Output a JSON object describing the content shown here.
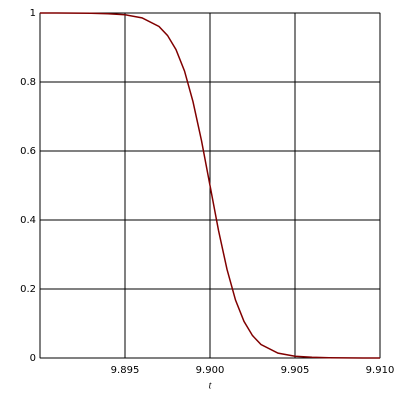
{
  "chart_data": {
    "type": "line",
    "xlabel": "t",
    "x": [
      9.89,
      9.891,
      9.892,
      9.893,
      9.894,
      9.895,
      9.896,
      9.897,
      9.8975,
      9.898,
      9.8985,
      9.899,
      9.8995,
      9.9,
      9.9005,
      9.901,
      9.9015,
      9.902,
      9.9025,
      9.903,
      9.904,
      9.905,
      9.906,
      9.907,
      9.908,
      9.909,
      9.91
    ],
    "series": [
      {
        "color": "#800000",
        "values": [
          1.0,
          0.9999,
          0.9998,
          0.9994,
          0.998,
          0.995,
          0.986,
          0.961,
          0.935,
          0.894,
          0.832,
          0.743,
          0.63,
          0.5,
          0.37,
          0.257,
          0.168,
          0.106,
          0.065,
          0.039,
          0.014,
          0.005,
          0.002,
          0.0006,
          0.0002,
          0.0001,
          0.0
        ]
      }
    ],
    "xlim": [
      9.89,
      9.91
    ],
    "xticks": [
      9.895,
      {
        "value": 9.9,
        "label": "9.900"
      },
      9.905,
      {
        "value": 9.91,
        "label": "9.910"
      }
    ],
    "ylim": [
      0,
      1
    ],
    "yticks": [
      0,
      0.2,
      0.4,
      0.6,
      0.8,
      1
    ],
    "grid": true
  }
}
